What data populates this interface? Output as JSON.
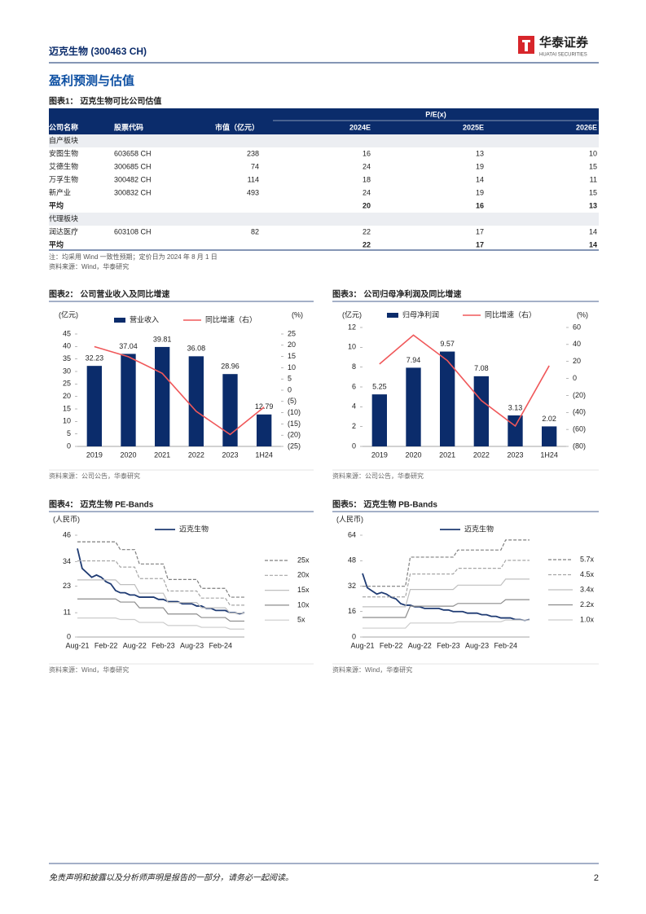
{
  "header": {
    "company": "迈克生物 (300463 CH)",
    "brand": "华泰证券",
    "brand_en": "HUATAI SECURITIES"
  },
  "section_title": "盈利预测与估值",
  "table": {
    "title": "图表1： 迈克生物可比公司估值",
    "group_header": "P/E(x)",
    "columns": [
      "公司名称",
      "股票代码",
      "市值（亿元）",
      "2024E",
      "2025E",
      "2026E"
    ],
    "rows": [
      {
        "section": "自产板块"
      },
      {
        "name": "安图生物",
        "code": "603658 CH",
        "cap": 238,
        "pe": [
          16,
          13,
          10
        ]
      },
      {
        "name": "艾德生物",
        "code": "300685 CH",
        "cap": 74,
        "pe": [
          24,
          19,
          15
        ]
      },
      {
        "name": "万孚生物",
        "code": "300482 CH",
        "cap": 114,
        "pe": [
          18,
          14,
          11
        ]
      },
      {
        "name": "新产业",
        "code": "300832 CH",
        "cap": 493,
        "pe": [
          24,
          19,
          15
        ]
      },
      {
        "name": "平均",
        "pe": [
          20,
          16,
          13
        ]
      },
      {
        "section": "代理板块"
      },
      {
        "name": "润达医疗",
        "code": "603108 CH",
        "cap": 82,
        "pe": [
          22,
          17,
          14
        ]
      },
      {
        "name": "平均",
        "pe": [
          22,
          17,
          14
        ]
      }
    ],
    "note": "注：均采用 Wind 一致性预期；定价日为 2024 年 8 月 1 日",
    "source": "资料来源：Wind，华泰研究"
  },
  "chart_data": [
    {
      "type": "combo",
      "title": "图表2： 公司营业收入及同比增速",
      "y_unit": "(亿元)",
      "y2_unit": "(%)",
      "categories": [
        "2019",
        "2020",
        "2021",
        "2022",
        "2023",
        "1H24"
      ],
      "series": [
        {
          "name": "营业收入",
          "color": "#0b2c6b",
          "values": [
            32.23,
            37.04,
            39.81,
            36.08,
            28.96,
            12.79
          ]
        },
        {
          "name": "同比增速（右）",
          "color": "#f0585a",
          "axis": "y2",
          "values": [
            19.4,
            14.9,
            7.5,
            -9.4,
            -19.7,
            -7.5
          ]
        }
      ],
      "ylim": [
        0,
        45
      ],
      "yticks": [
        0,
        5,
        10,
        15,
        20,
        25,
        30,
        35,
        40,
        45
      ],
      "y2lim": [
        -25,
        25
      ],
      "y2ticks": [
        {
          "value": -25,
          "label": "(25)"
        },
        {
          "value": -20,
          "label": "(20)"
        },
        {
          "value": -15,
          "label": "(15)"
        },
        {
          "value": -10,
          "label": "(10)"
        },
        {
          "value": -5,
          "label": "(5)"
        },
        0,
        5,
        10,
        15,
        20,
        25
      ],
      "source": "资料来源：公司公告，华泰研究"
    },
    {
      "type": "combo",
      "title": "图表3： 公司归母净利润及同比增速",
      "y_unit": "(亿元)",
      "y2_unit": "(%)",
      "categories": [
        "2019",
        "2020",
        "2021",
        "2022",
        "2023",
        "1H24"
      ],
      "series": [
        {
          "name": "归母净利润",
          "color": "#0b2c6b",
          "values": [
            5.25,
            7.94,
            9.57,
            7.08,
            3.13,
            2.02
          ]
        },
        {
          "name": "同比增速（右）",
          "color": "#f0585a",
          "axis": "y2",
          "values": [
            17,
            51,
            21,
            -26,
            -56,
            15
          ]
        }
      ],
      "ylim": [
        0,
        12
      ],
      "yticks": [
        0,
        2,
        4,
        6,
        8,
        10,
        12
      ],
      "y2lim": [
        -80,
        60
      ],
      "y2ticks": [
        {
          "value": -80,
          "label": "(80)"
        },
        {
          "value": -60,
          "label": "(60)"
        },
        {
          "value": -40,
          "label": "(40)"
        },
        {
          "value": -20,
          "label": "(20)"
        },
        0,
        20,
        40,
        60
      ],
      "source": "资料来源：公司公告，华泰研究"
    },
    {
      "type": "line",
      "title": "图表4： 迈克生物 PE-Bands",
      "y_unit": "(人民币)",
      "categories": [
        "Aug-21",
        null,
        null,
        null,
        null,
        null,
        "Feb-22",
        null,
        null,
        null,
        null,
        null,
        "Aug-22",
        null,
        null,
        null,
        null,
        null,
        "Feb-23",
        null,
        null,
        null,
        null,
        null,
        "Aug-23",
        null,
        null,
        null,
        null,
        null,
        "Feb-24",
        null,
        null,
        null,
        null,
        null
      ],
      "series": [
        {
          "name": "迈克生物",
          "color": "#1f3b73",
          "width": 1.8,
          "values": [
            40,
            31,
            29,
            27,
            28,
            27,
            25,
            24,
            21,
            20,
            20,
            19,
            19,
            18,
            18,
            18,
            18,
            17,
            17,
            16,
            16,
            16,
            15,
            15,
            15,
            14,
            14,
            13,
            13,
            12,
            12,
            12,
            11,
            11,
            10.5,
            11
          ]
        },
        {
          "name": "25x",
          "color": "#7f7f7f",
          "dash": true,
          "values": [
            43,
            43,
            43,
            43,
            43,
            43,
            43,
            43,
            43,
            39.5,
            39.5,
            39.5,
            39.5,
            33,
            33,
            33,
            33,
            33,
            33,
            26,
            26,
            26,
            26,
            26,
            26,
            26,
            22,
            22,
            22,
            22,
            22,
            22,
            18,
            18,
            18,
            18
          ]
        },
        {
          "name": "20x",
          "color": "#a6a6a6",
          "dash": true,
          "values": [
            34.4,
            34.4,
            34.4,
            34.4,
            34.4,
            34.4,
            34.4,
            34.4,
            34.4,
            31.6,
            31.6,
            31.6,
            31.6,
            26.4,
            26.4,
            26.4,
            26.4,
            26.4,
            26.4,
            20.8,
            20.8,
            20.8,
            20.8,
            20.8,
            20.8,
            20.8,
            17.6,
            17.6,
            17.6,
            17.6,
            17.6,
            17.6,
            14.4,
            14.4,
            14.4,
            14.4
          ]
        },
        {
          "name": "15x",
          "color": "#bfbfbf",
          "values": [
            25.8,
            25.8,
            25.8,
            25.8,
            25.8,
            25.8,
            25.8,
            25.8,
            25.8,
            23.7,
            23.7,
            23.7,
            23.7,
            19.8,
            19.8,
            19.8,
            19.8,
            19.8,
            19.8,
            15.6,
            15.6,
            15.6,
            15.6,
            15.6,
            15.6,
            15.6,
            13.2,
            13.2,
            13.2,
            13.2,
            13.2,
            13.2,
            10.8,
            10.8,
            10.8,
            10.8
          ]
        },
        {
          "name": "10x",
          "color": "#8c8c8c",
          "values": [
            17.2,
            17.2,
            17.2,
            17.2,
            17.2,
            17.2,
            17.2,
            17.2,
            17.2,
            15.8,
            15.8,
            15.8,
            15.8,
            13.2,
            13.2,
            13.2,
            13.2,
            13.2,
            13.2,
            10.4,
            10.4,
            10.4,
            10.4,
            10.4,
            10.4,
            10.4,
            8.8,
            8.8,
            8.8,
            8.8,
            8.8,
            8.8,
            7.2,
            7.2,
            7.2,
            7.2
          ]
        },
        {
          "name": "5x",
          "color": "#cccccc",
          "values": [
            8.6,
            8.6,
            8.6,
            8.6,
            8.6,
            8.6,
            8.6,
            8.6,
            8.6,
            7.9,
            7.9,
            7.9,
            7.9,
            6.6,
            6.6,
            6.6,
            6.6,
            6.6,
            6.6,
            5.2,
            5.2,
            5.2,
            5.2,
            5.2,
            5.2,
            5.2,
            4.4,
            4.4,
            4.4,
            4.4,
            4.4,
            4.4,
            3.6,
            3.6,
            3.6,
            3.6
          ]
        }
      ],
      "ylim": [
        0,
        46
      ],
      "yticks": [
        0,
        11,
        23,
        34,
        46
      ],
      "source": "资料来源：Wind，华泰研究"
    },
    {
      "type": "line",
      "title": "图表5： 迈克生物 PB-Bands",
      "y_unit": "(人民币)",
      "categories": [
        "Aug-21",
        null,
        null,
        null,
        null,
        null,
        "Feb-22",
        null,
        null,
        null,
        null,
        null,
        "Aug-22",
        null,
        null,
        null,
        null,
        null,
        "Feb-23",
        null,
        null,
        null,
        null,
        null,
        "Aug-23",
        null,
        null,
        null,
        null,
        null,
        "Feb-24",
        null,
        null,
        null,
        null,
        null
      ],
      "series": [
        {
          "name": "迈克生物",
          "color": "#1f3b73",
          "width": 1.8,
          "values": [
            40,
            31,
            29,
            27,
            28,
            27,
            25,
            24,
            21,
            20,
            20,
            19,
            19,
            18,
            18,
            18,
            18,
            17,
            17,
            16,
            16,
            16,
            15,
            15,
            15,
            14,
            14,
            13,
            13,
            12,
            12,
            12,
            11,
            11,
            10.5,
            11
          ]
        },
        {
          "name": "5.7x",
          "color": "#7f7f7f",
          "dash": true,
          "values": [
            31.9,
            31.9,
            31.9,
            31.9,
            31.9,
            31.9,
            31.9,
            31.9,
            31.9,
            31.9,
            50.2,
            50.2,
            50.2,
            50.2,
            50.2,
            50.2,
            50.2,
            50.2,
            50.2,
            50.2,
            54.7,
            54.7,
            54.7,
            54.7,
            54.7,
            54.7,
            54.7,
            54.7,
            54.7,
            54.7,
            61,
            61,
            61,
            61,
            61,
            61
          ]
        },
        {
          "name": "4.5x",
          "color": "#a6a6a6",
          "dash": true,
          "values": [
            25.2,
            25.2,
            25.2,
            25.2,
            25.2,
            25.2,
            25.2,
            25.2,
            25.2,
            25.2,
            39.6,
            39.6,
            39.6,
            39.6,
            39.6,
            39.6,
            39.6,
            39.6,
            39.6,
            39.6,
            43.2,
            43.2,
            43.2,
            43.2,
            43.2,
            43.2,
            43.2,
            43.2,
            43.2,
            43.2,
            48.2,
            48.2,
            48.2,
            48.2,
            48.2,
            48.2
          ]
        },
        {
          "name": "3.4x",
          "color": "#bfbfbf",
          "values": [
            19,
            19,
            19,
            19,
            19,
            19,
            19,
            19,
            19,
            19,
            29.9,
            29.9,
            29.9,
            29.9,
            29.9,
            29.9,
            29.9,
            29.9,
            29.9,
            29.9,
            32.6,
            32.6,
            32.6,
            32.6,
            32.6,
            32.6,
            32.6,
            32.6,
            32.6,
            32.6,
            36.4,
            36.4,
            36.4,
            36.4,
            36.4,
            36.4
          ]
        },
        {
          "name": "2.2x",
          "color": "#8c8c8c",
          "values": [
            12.3,
            12.3,
            12.3,
            12.3,
            12.3,
            12.3,
            12.3,
            12.3,
            12.3,
            12.3,
            19.4,
            19.4,
            19.4,
            19.4,
            19.4,
            19.4,
            19.4,
            19.4,
            19.4,
            19.4,
            21.1,
            21.1,
            21.1,
            21.1,
            21.1,
            21.1,
            21.1,
            21.1,
            21.1,
            21.1,
            23.5,
            23.5,
            23.5,
            23.5,
            23.5,
            23.5
          ]
        },
        {
          "name": "1.0x",
          "color": "#cccccc",
          "values": [
            5.6,
            5.6,
            5.6,
            5.6,
            5.6,
            5.6,
            5.6,
            5.6,
            5.6,
            5.6,
            8.8,
            8.8,
            8.8,
            8.8,
            8.8,
            8.8,
            8.8,
            8.8,
            8.8,
            8.8,
            9.6,
            9.6,
            9.6,
            9.6,
            9.6,
            9.6,
            9.6,
            9.6,
            9.6,
            9.6,
            10.7,
            10.7,
            10.7,
            10.7,
            10.7,
            10.7
          ]
        }
      ],
      "ylim": [
        0,
        64
      ],
      "yticks": [
        0,
        16,
        32,
        48,
        64
      ],
      "source": "资料来源：Wind，华泰研究"
    }
  ],
  "footer": {
    "disclaimer": "免责声明和披露以及分析师声明是报告的一部分，请务必一起阅读。",
    "page": "2"
  }
}
